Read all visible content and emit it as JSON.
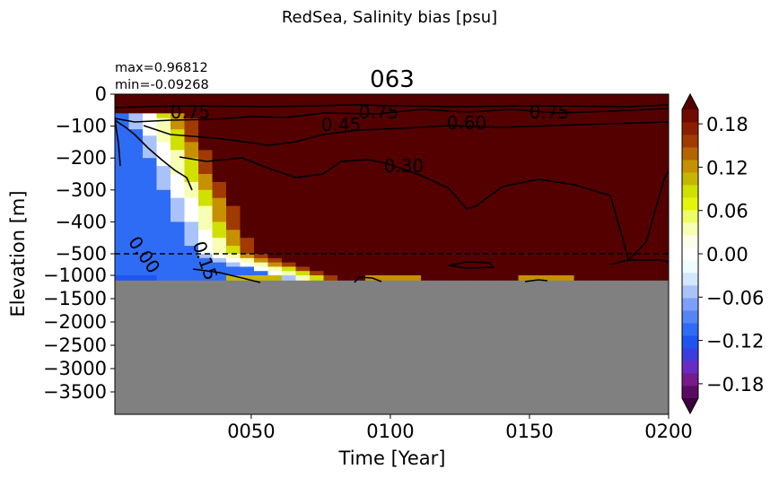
{
  "chart_data": {
    "type": "heatmap",
    "suptitle": "RedSea, Salinity bias [psu]",
    "title": "063",
    "stats": {
      "max": "max=0.96812",
      "min": "min=-0.09268"
    },
    "xlabel": "Time [Year]",
    "ylabel": "Elevation [m]",
    "x_range": [
      1,
      200
    ],
    "x_ticks": [
      "0050",
      "0100",
      "0150",
      "0200"
    ],
    "x_tick_values": [
      50,
      100,
      150,
      200
    ],
    "y_ticks": [
      "0",
      "−100",
      "−200",
      "−300",
      "−400",
      "−500",
      "−1000",
      "−1500",
      "−2000",
      "−2500",
      "−3000",
      "−3500"
    ],
    "y_tick_values": [
      0,
      -100,
      -200,
      -300,
      -400,
      -500,
      -1000,
      -1500,
      -2000,
      -2500,
      -3000,
      -3500
    ],
    "y_axis_note": "piecewise: 0 to -500 m on an expanded scale, -500 to -4000 m compressed",
    "seafloor_depth": -1100,
    "missing_color": "#808080",
    "dashed_line_depth": -500,
    "colorbar": {
      "ticks": [
        "0.18",
        "0.12",
        "0.06",
        "0.00",
        "−0.06",
        "−0.12",
        "−0.18"
      ],
      "tick_values": [
        0.18,
        0.12,
        0.06,
        0.0,
        -0.06,
        -0.12,
        -0.18
      ],
      "range": [
        -0.2,
        0.2
      ],
      "extend": "both",
      "colors": [
        "#3d003d",
        "#5a0a63",
        "#771a8c",
        "#6a2bc4",
        "#3d3ce0",
        "#1e55f0",
        "#2f6cf5",
        "#5584f5",
        "#7e9ff7",
        "#a9c3fa",
        "#d2e6fc",
        "#ecfcff",
        "#ffffff",
        "#fbffe8",
        "#f6ffb4",
        "#eefc6a",
        "#e4f50c",
        "#d0e000",
        "#c7b600",
        "#c79000",
        "#b46400",
        "#a03a00",
        "#8c1e00",
        "#6e0a00",
        "#540000"
      ]
    },
    "contour_labels": [
      "0.75",
      "0.75",
      "0.75",
      "0.45",
      "0.60",
      "0.30",
      "0.00",
      "0.15"
    ]
  }
}
